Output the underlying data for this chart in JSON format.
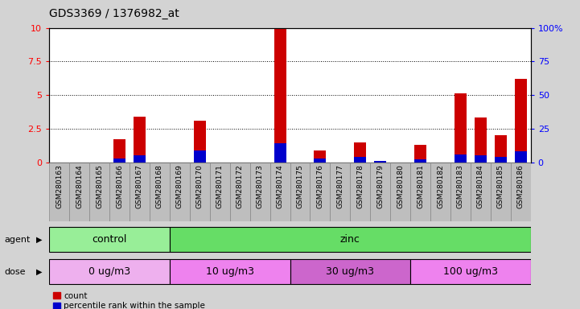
{
  "title": "GDS3369 / 1376982_at",
  "samples": [
    "GSM280163",
    "GSM280164",
    "GSM280165",
    "GSM280166",
    "GSM280167",
    "GSM280168",
    "GSM280169",
    "GSM280170",
    "GSM280171",
    "GSM280172",
    "GSM280173",
    "GSM280174",
    "GSM280175",
    "GSM280176",
    "GSM280177",
    "GSM280178",
    "GSM280179",
    "GSM280180",
    "GSM280181",
    "GSM280182",
    "GSM280183",
    "GSM280184",
    "GSM280185",
    "GSM280186"
  ],
  "count_values": [
    0.0,
    0.0,
    0.0,
    1.7,
    3.4,
    0.0,
    0.0,
    3.1,
    0.0,
    0.0,
    0.0,
    9.9,
    0.0,
    0.9,
    0.0,
    1.5,
    0.0,
    0.0,
    1.3,
    0.0,
    5.1,
    3.3,
    2.0,
    6.2
  ],
  "percentile_values": [
    0.0,
    0.0,
    0.0,
    0.3,
    0.5,
    0.0,
    0.0,
    0.9,
    0.0,
    0.0,
    0.0,
    1.4,
    0.0,
    0.3,
    0.0,
    0.4,
    0.1,
    0.0,
    0.2,
    0.0,
    0.6,
    0.5,
    0.4,
    0.8
  ],
  "agent_groups": [
    {
      "label": "control",
      "start": 0,
      "end": 6,
      "color": "#98EE98"
    },
    {
      "label": "zinc",
      "start": 6,
      "end": 24,
      "color": "#66DD66"
    }
  ],
  "dose_groups": [
    {
      "label": "0 ug/m3",
      "start": 0,
      "end": 6,
      "color": "#EEB0EE"
    },
    {
      "label": "10 ug/m3",
      "start": 6,
      "end": 12,
      "color": "#EE82EE"
    },
    {
      "label": "30 ug/m3",
      "start": 12,
      "end": 18,
      "color": "#CC66CC"
    },
    {
      "label": "100 ug/m3",
      "start": 18,
      "end": 24,
      "color": "#EE82EE"
    }
  ],
  "ylim_left": [
    0,
    10
  ],
  "ylim_right": [
    0,
    100
  ],
  "yticks_left": [
    0,
    2.5,
    5.0,
    7.5,
    10
  ],
  "yticks_right": [
    0,
    25,
    50,
    75,
    100
  ],
  "bar_color": "#CC0000",
  "percentile_color": "#0000CC",
  "fig_bg": "#D3D3D3",
  "plot_bg": "#FFFFFF",
  "xtick_bg": "#BEBEBE"
}
